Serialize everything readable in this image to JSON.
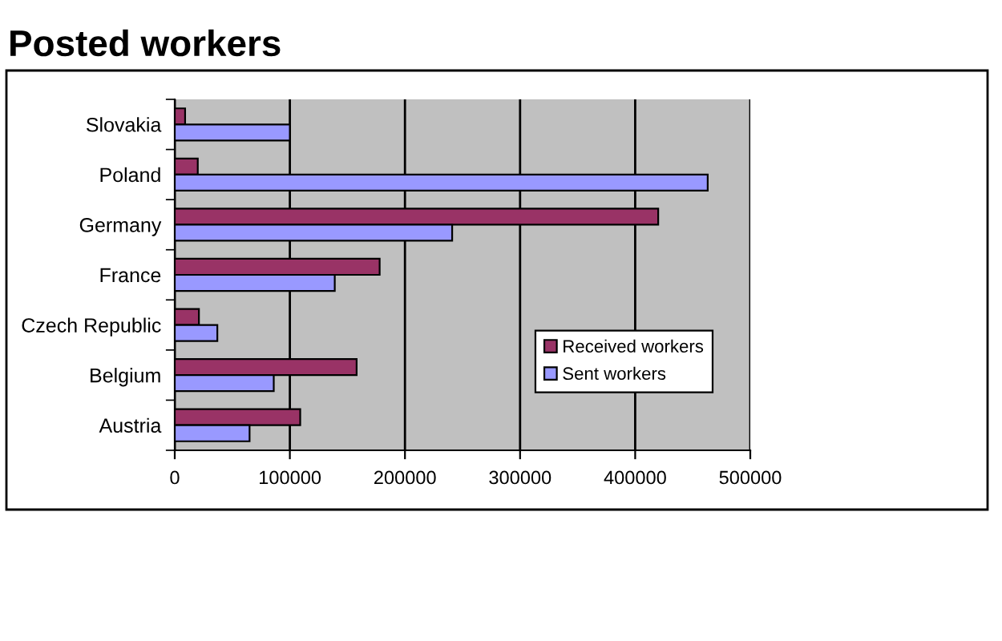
{
  "chart_data": {
    "type": "bar",
    "orientation": "horizontal",
    "title": "Posted workers",
    "categories": [
      "Slovakia",
      "Poland",
      "Germany",
      "France",
      "Czech Republic",
      "Belgium",
      "Austria"
    ],
    "series": [
      {
        "name": "Received workers",
        "color": "#993366",
        "values": [
          9000,
          20000,
          420000,
          178000,
          21000,
          158000,
          109000
        ]
      },
      {
        "name": "Sent workers",
        "color": "#9999ff",
        "values": [
          100000,
          463000,
          241000,
          139000,
          37000,
          86000,
          65000
        ]
      }
    ],
    "xlim": [
      0,
      500000
    ],
    "xticks": [
      0,
      100000,
      200000,
      300000,
      400000,
      500000
    ],
    "grid": "x",
    "legend": "bottom right"
  }
}
